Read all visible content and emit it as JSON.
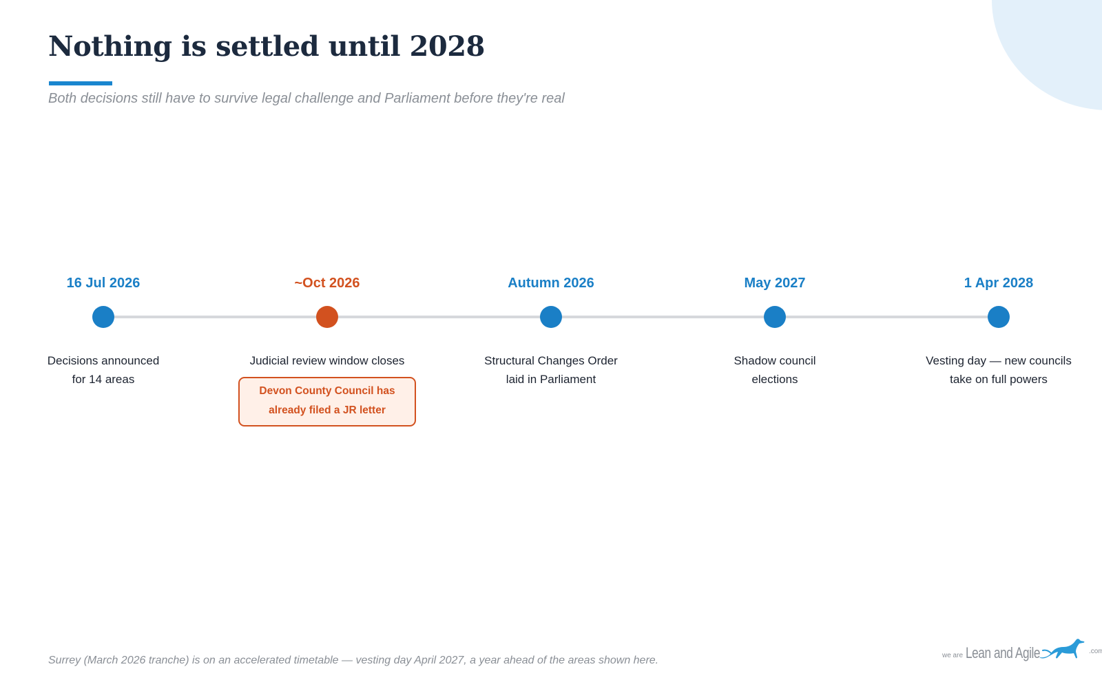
{
  "title": "Nothing is settled until 2028",
  "subtitle": "Both decisions still have to survive legal challenge and Parliament before they're real",
  "accent_color": "#1a7fc6",
  "warning_color": "#d2511f",
  "timeline": {
    "milestones": [
      {
        "date": "16 Jul 2026",
        "desc_lines": [
          "Decisions announced",
          "for 14 areas"
        ],
        "status": "normal"
      },
      {
        "date": "~Oct 2026",
        "desc_lines": [
          "Judicial review window closes"
        ],
        "status": "warning",
        "callout_lines": [
          "Devon County Council has",
          "already filed a JR letter"
        ]
      },
      {
        "date": "Autumn 2026",
        "desc_lines": [
          "Structural Changes Order",
          "laid in Parliament"
        ],
        "status": "normal"
      },
      {
        "date": "May 2027",
        "desc_lines": [
          "Shadow council",
          "elections"
        ],
        "status": "normal"
      },
      {
        "date": "1 Apr 2028",
        "desc_lines": [
          "Vesting day — new councils",
          "take on full powers"
        ],
        "status": "normal"
      }
    ]
  },
  "footnote": "Surrey (March 2026 tranche) is on an accelerated timetable — vesting day April 2027, a year ahead of the areas shown here.",
  "logo": {
    "we_are": "we are",
    "brand": "Lean and Agile",
    "suffix": ".com",
    "icon": "greyhound-icon"
  }
}
